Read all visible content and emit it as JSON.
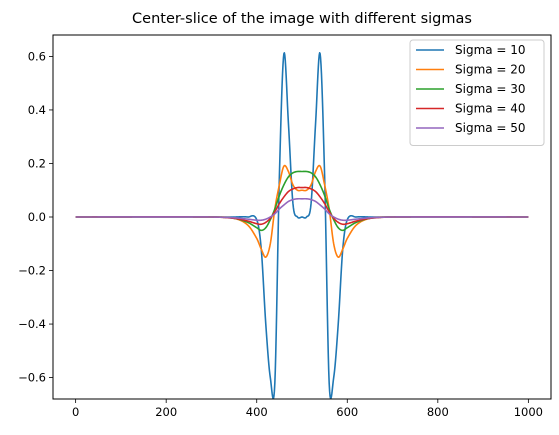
{
  "chart_data": {
    "type": "line",
    "title": "Center-slice of the image with different sigmas",
    "xlabel": "",
    "ylabel": "",
    "xlim": [
      -50,
      1050
    ],
    "ylim": [
      -0.68,
      0.68
    ],
    "xticks": [
      0,
      200,
      400,
      600,
      800,
      1000
    ],
    "yticks": [
      -0.6,
      -0.4,
      -0.2,
      0.0,
      0.2,
      0.4,
      0.6
    ],
    "xtick_labels": [
      "0",
      "200",
      "400",
      "600",
      "800",
      "1000"
    ],
    "ytick_labels": [
      "−0.6",
      "−0.4",
      "−0.2",
      "0.0",
      "0.2",
      "0.4",
      "0.6"
    ],
    "grid": false,
    "legend_position": "top-right",
    "x": [
      0,
      300,
      350,
      380,
      400,
      410,
      420,
      430,
      440,
      450,
      460,
      470,
      480,
      490,
      500,
      510,
      520,
      530,
      540,
      550,
      560,
      570,
      580,
      590,
      600,
      620,
      650,
      700,
      1000
    ],
    "series": [
      {
        "name": "Sigma = 10",
        "color": "#1f77b4",
        "values": [
          0,
          0,
          0,
          0,
          -0.01,
          -0.12,
          -0.4,
          -0.6,
          -0.62,
          0.15,
          0.61,
          0.35,
          0.05,
          0.0,
          0.0,
          0.0,
          0.05,
          0.35,
          0.61,
          0.15,
          -0.62,
          -0.6,
          -0.4,
          -0.12,
          -0.01,
          0,
          0,
          0,
          0
        ]
      },
      {
        "name": "Sigma = 20",
        "color": "#ff7f0e",
        "values": [
          0,
          0,
          -0.005,
          -0.03,
          -0.08,
          -0.12,
          -0.15,
          -0.1,
          0.03,
          0.12,
          0.19,
          0.17,
          0.12,
          0.1,
          0.1,
          0.1,
          0.12,
          0.17,
          0.19,
          0.12,
          0.03,
          -0.1,
          -0.15,
          -0.12,
          -0.08,
          -0.03,
          -0.005,
          0,
          0
        ]
      },
      {
        "name": "Sigma = 30",
        "color": "#2ca02c",
        "values": [
          0,
          0,
          -0.005,
          -0.02,
          -0.04,
          -0.05,
          -0.04,
          -0.01,
          0.03,
          0.08,
          0.12,
          0.15,
          0.165,
          0.17,
          0.17,
          0.17,
          0.165,
          0.15,
          0.12,
          0.08,
          0.03,
          -0.01,
          -0.04,
          -0.05,
          -0.04,
          -0.02,
          -0.005,
          0,
          0
        ]
      },
      {
        "name": "Sigma = 40",
        "color": "#d62728",
        "values": [
          0,
          0,
          -0.005,
          -0.015,
          -0.025,
          -0.027,
          -0.02,
          -0.005,
          0.02,
          0.05,
          0.075,
          0.095,
          0.105,
          0.11,
          0.11,
          0.11,
          0.105,
          0.095,
          0.075,
          0.05,
          0.02,
          -0.005,
          -0.02,
          -0.027,
          -0.025,
          -0.015,
          -0.005,
          0,
          0
        ]
      },
      {
        "name": "Sigma = 50",
        "color": "#9467bd",
        "values": [
          0,
          0,
          -0.003,
          -0.008,
          -0.012,
          -0.012,
          -0.008,
          0.0,
          0.012,
          0.03,
          0.045,
          0.058,
          0.065,
          0.068,
          0.068,
          0.068,
          0.065,
          0.058,
          0.045,
          0.03,
          0.012,
          0.0,
          -0.008,
          -0.012,
          -0.012,
          -0.008,
          -0.003,
          0,
          0
        ]
      }
    ]
  }
}
